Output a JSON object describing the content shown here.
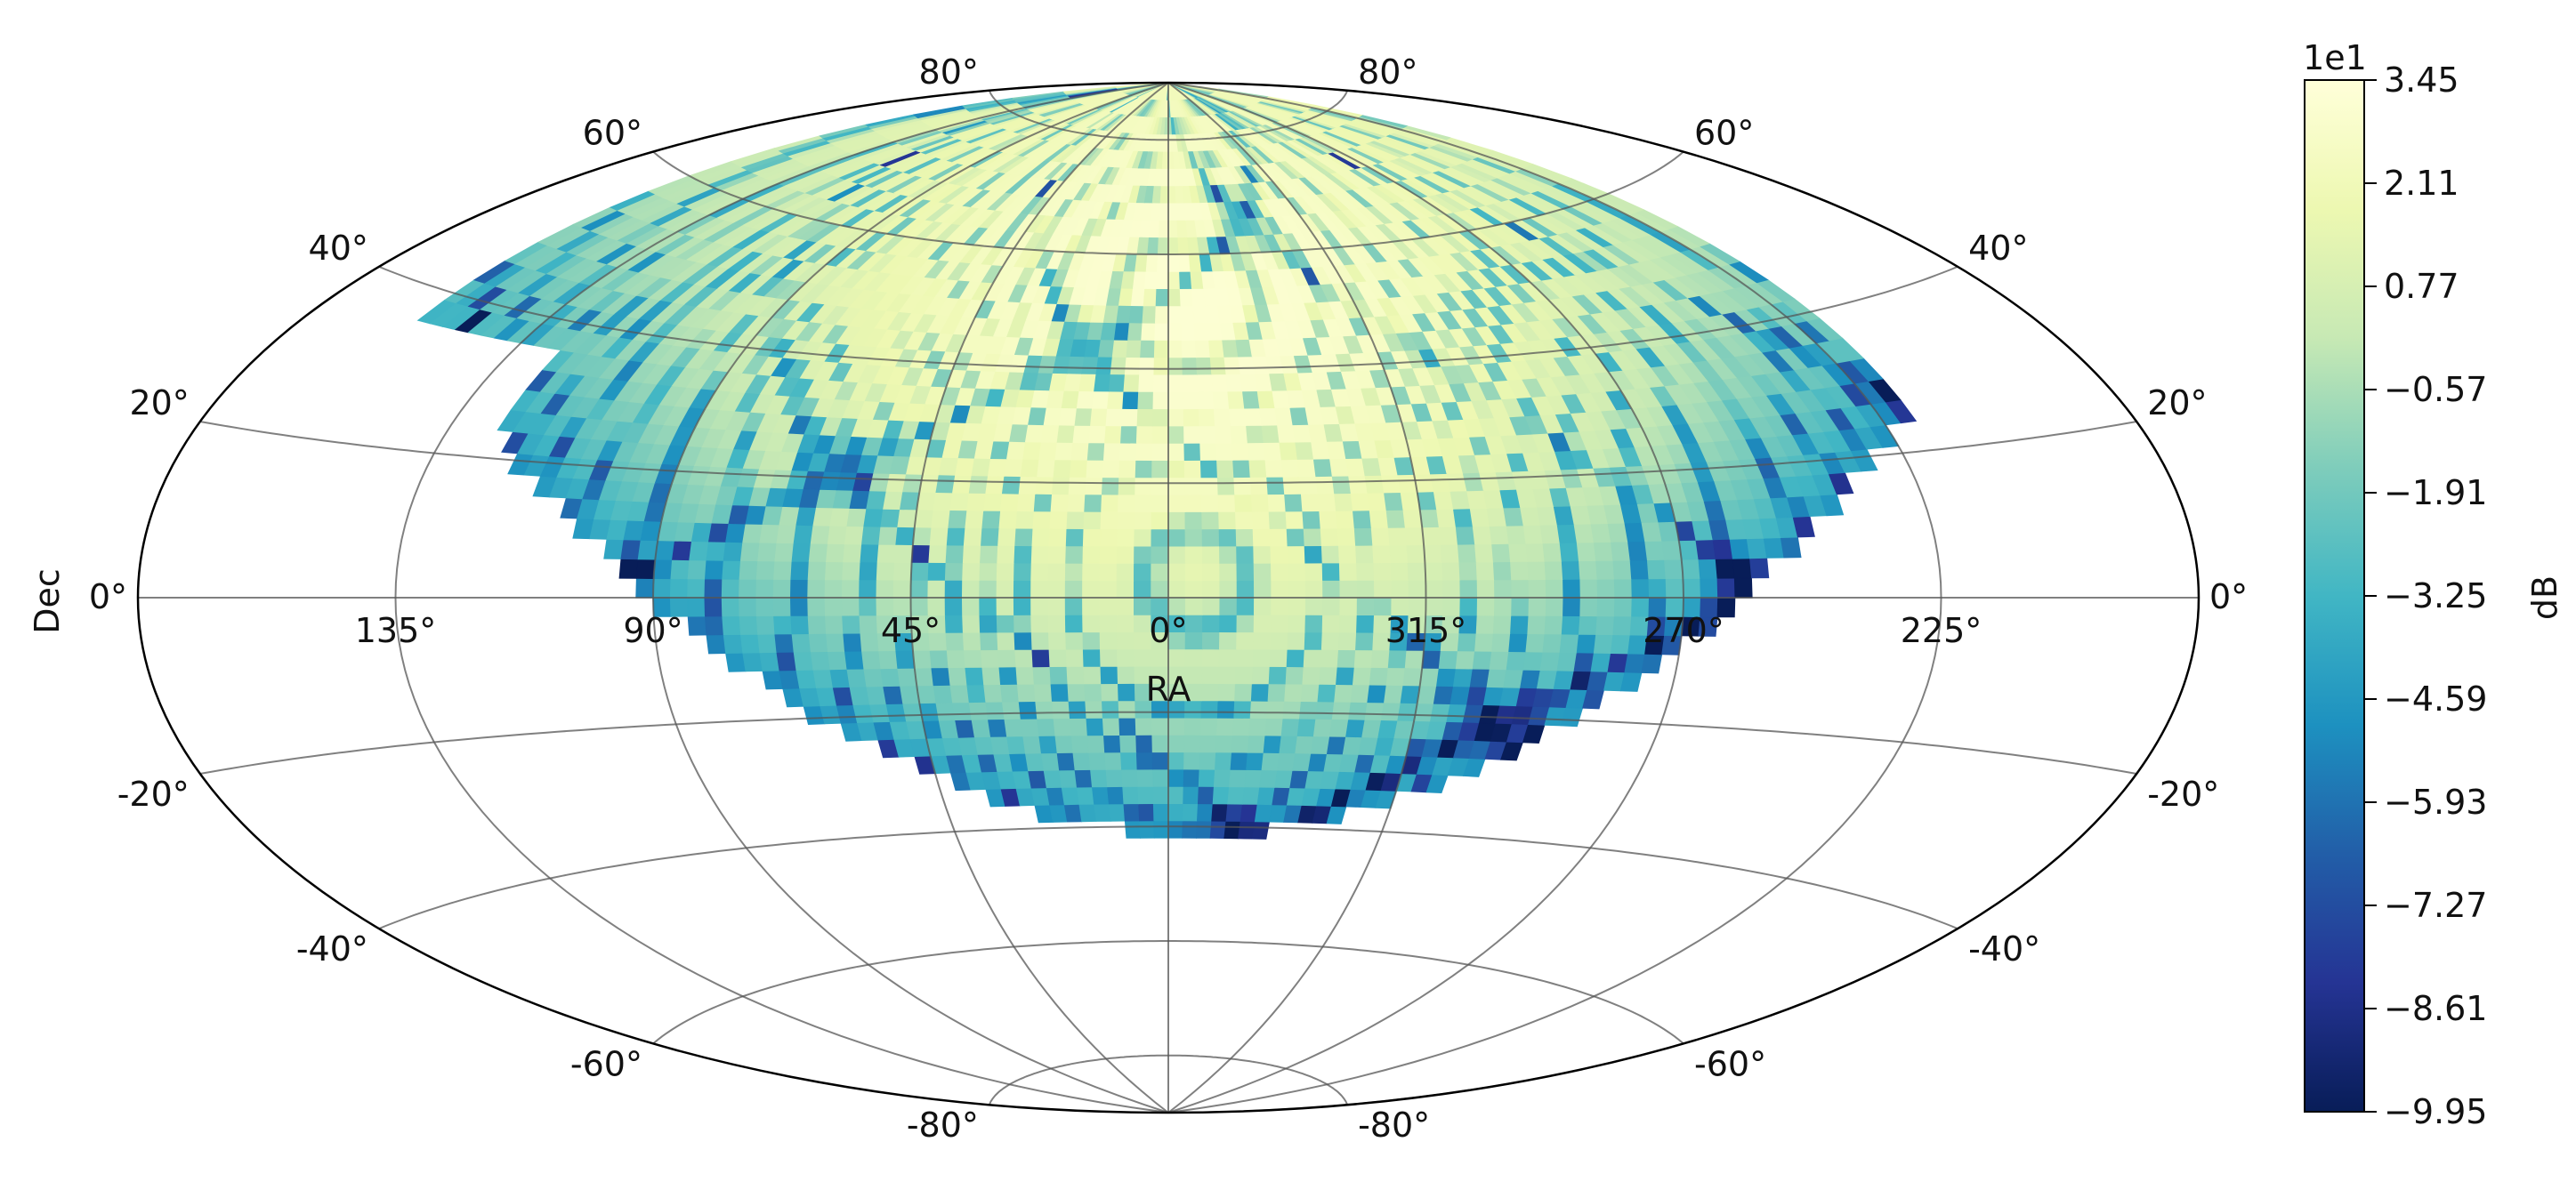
{
  "chart_data": {
    "type": "heatmap",
    "projection": "aitoff",
    "title": "",
    "xlabel": "RA",
    "ylabel": "Dec",
    "ra_ticks": [
      "135°",
      "90°",
      "45°",
      "0°",
      "315°",
      "270°",
      "225°"
    ],
    "ra_tick_values": [
      135,
      90,
      45,
      0,
      315,
      270,
      225
    ],
    "dec_ticks_left": [
      "80°",
      "60°",
      "40°",
      "20°",
      "0°",
      "-20°",
      "-40°",
      "-60°",
      "-80°"
    ],
    "dec_ticks_right": [
      "80°",
      "60°",
      "40°",
      "20°",
      "0°",
      "-20°",
      "-40°",
      "-60°",
      "-80°"
    ],
    "dec_tick_values": [
      80,
      60,
      40,
      20,
      0,
      -20,
      -40,
      -60,
      -80
    ],
    "grid": true,
    "colorbar": {
      "label": "dB",
      "offset_label": "1e1",
      "ticks": [
        "3.45",
        "2.11",
        "0.77",
        "−0.57",
        "−1.91",
        "−3.25",
        "−4.59",
        "−5.93",
        "−7.27",
        "−8.61",
        "−9.95"
      ],
      "tick_values": [
        3.45,
        2.11,
        0.77,
        -0.57,
        -1.91,
        -3.25,
        -4.59,
        -5.93,
        -7.27,
        -8.61,
        -9.95
      ],
      "range": [
        -9.95,
        3.45
      ],
      "colormap": "YlGnBu_r",
      "colors": [
        "#081d58",
        "#253494",
        "#225ea8",
        "#1d91c0",
        "#41b6c4",
        "#7fcdbb",
        "#c7e9b4",
        "#edf8b1",
        "#ffffd9"
      ]
    },
    "coverage": "sky region visible above the horizon, RA 0° at center",
    "color_range_visible": [
      -5.0,
      3.2
    ]
  }
}
